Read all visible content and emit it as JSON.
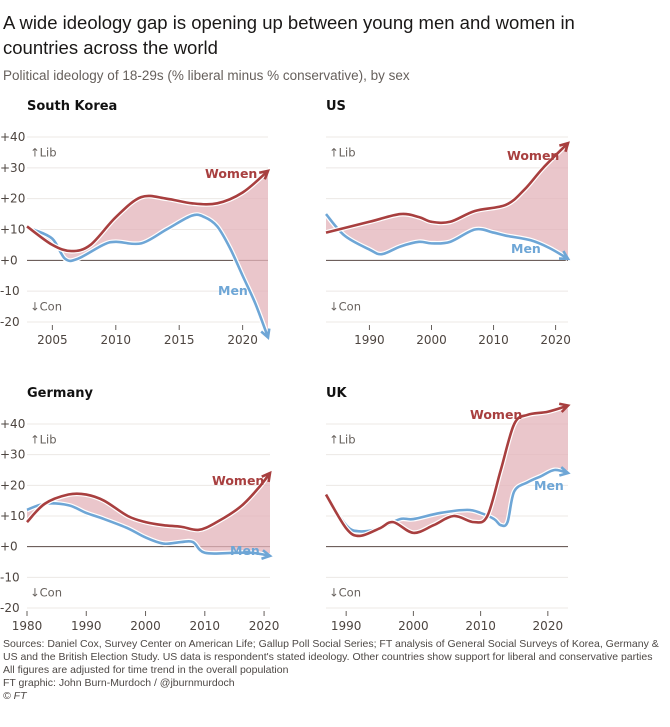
{
  "title": "A wide ideology gap is opening up between young men and women in countries across the world",
  "subtitle": "Political ideology of 18-29s (% liberal minus % conservative), by sex",
  "footer": {
    "sources": "Sources: Daniel Cox, Survey Center on American Life; Gallup Poll Social Series; FT analysis of General Social Surveys of Korea, Germany & US and the British Election Study. US data is respondent's stated ideology. Other countries show support for liberal and conservative parties",
    "note": "All figures are adjusted for time trend in the overall population",
    "credit": "FT graphic: John Burn-Murdoch / @jburnmurdoch",
    "copyright": "© FT"
  },
  "colors": {
    "women": "#a83f3f",
    "men": "#6ea6d6",
    "gap_fill": "#e3b3ba",
    "zero_line": "#5a4a44",
    "grid": "#ece8e5"
  },
  "chart_data": [
    {
      "type": "line",
      "title": "South Korea",
      "ylim": [
        -20,
        40
      ],
      "yticks": [
        "+40",
        "+30",
        "+20",
        "+10",
        "+0",
        "-10",
        "-20"
      ],
      "xticks": [
        2005,
        2010,
        2015,
        2020
      ],
      "xlim": [
        2003,
        2022
      ],
      "lib_label": "↑Lib",
      "con_label": "↓Con",
      "grid": true,
      "series": [
        {
          "name": "Women",
          "x": [
            2003,
            2005,
            2006.5,
            2008,
            2010,
            2012,
            2014,
            2016,
            2018,
            2020,
            2022
          ],
          "y": [
            11,
            5,
            3,
            5,
            14,
            20.5,
            20,
            18.5,
            18.5,
            22,
            29
          ]
        },
        {
          "name": "Men",
          "x": [
            2003.5,
            2005,
            2006,
            2007,
            2009,
            2010,
            2012,
            2014,
            2016,
            2017,
            2018,
            2019,
            2020,
            2021,
            2022
          ],
          "y": [
            10,
            7,
            0.5,
            0.5,
            5,
            6,
            5.5,
            10,
            14.5,
            14,
            11,
            4,
            -5,
            -14,
            -25
          ]
        }
      ]
    },
    {
      "type": "line",
      "title": "US",
      "ylim": [
        -20,
        40
      ],
      "yticks": [
        "+40",
        "+30",
        "+20",
        "+10",
        "+0",
        "-10",
        "-20"
      ],
      "xticks": [
        1990,
        2000,
        2010,
        2020
      ],
      "xlim": [
        1983,
        2022
      ],
      "lib_label": "↑Lib",
      "con_label": "↓Con",
      "grid": true,
      "series": [
        {
          "name": "Women",
          "x": [
            1983,
            1990,
            1995,
            1998,
            2000,
            2003,
            2007,
            2012,
            2015,
            2018,
            2022
          ],
          "y": [
            9,
            12.5,
            15,
            14,
            12.5,
            12.5,
            16,
            18,
            23,
            30,
            38
          ]
        },
        {
          "name": "Men",
          "x": [
            1983,
            1986,
            1990,
            1992,
            1995,
            1998,
            2000,
            2003,
            2007,
            2010,
            2012,
            2016,
            2019,
            2022
          ],
          "y": [
            15,
            8,
            3.5,
            2,
            4.5,
            6,
            5.5,
            6,
            10,
            9,
            8,
            6.5,
            4,
            0.5
          ]
        }
      ]
    },
    {
      "type": "line",
      "title": "Germany",
      "ylim": [
        -20,
        40
      ],
      "yticks": [
        "+40",
        "+30",
        "+20",
        "+10",
        "+0",
        "-10",
        "-20"
      ],
      "xticks": [
        1980,
        1990,
        2000,
        2010,
        2020
      ],
      "xlim": [
        1980,
        2021
      ],
      "lib_label": "↑Lib",
      "con_label": "↓Con",
      "grid": true,
      "series": [
        {
          "name": "Women",
          "x": [
            1980,
            1983,
            1987,
            1990,
            1993,
            1997,
            2000,
            2003,
            2006,
            2009,
            2012,
            2016,
            2019,
            2021
          ],
          "y": [
            8,
            14,
            17,
            17,
            15,
            10,
            8,
            7,
            6.5,
            5.5,
            8,
            13,
            19,
            24
          ]
        },
        {
          "name": "Men",
          "x": [
            1980,
            1983,
            1987,
            1990,
            1993,
            1997,
            2000,
            2003,
            2006,
            2008,
            2010,
            2015,
            2018,
            2021
          ],
          "y": [
            12,
            14,
            13.5,
            11,
            9,
            6,
            3,
            1,
            1.5,
            1.5,
            -2,
            -2,
            -2,
            -3
          ]
        }
      ]
    },
    {
      "type": "line",
      "title": "UK",
      "ylim": [
        -20,
        40
      ],
      "yticks": [
        "+40",
        "+30",
        "+20",
        "+10",
        "+0",
        "-10",
        "-20"
      ],
      "xticks": [
        1990,
        2000,
        2010,
        2020
      ],
      "xlim": [
        1987,
        2023
      ],
      "lib_label": "↑Lib",
      "con_label": "↓Con",
      "grid": true,
      "series": [
        {
          "name": "Women",
          "x": [
            1987,
            1990,
            1992,
            1995,
            1997,
            2000,
            2003,
            2006,
            2009,
            2011,
            2013,
            2015,
            2017,
            2020,
            2023
          ],
          "y": [
            17,
            6,
            3.5,
            6,
            8,
            4.5,
            7,
            10,
            8,
            10,
            25,
            40,
            43,
            44,
            46
          ]
        },
        {
          "name": "Men",
          "x": [
            1987,
            1990,
            1992,
            1995,
            1998,
            2000,
            2004,
            2008,
            2010,
            2012,
            2013,
            2014,
            2015,
            2017,
            2019,
            2021,
            2023
          ],
          "y": [
            17,
            7,
            5,
            6,
            9,
            9,
            11,
            12,
            11,
            9,
            7,
            8,
            18,
            21,
            23,
            25,
            24
          ]
        }
      ]
    }
  ]
}
